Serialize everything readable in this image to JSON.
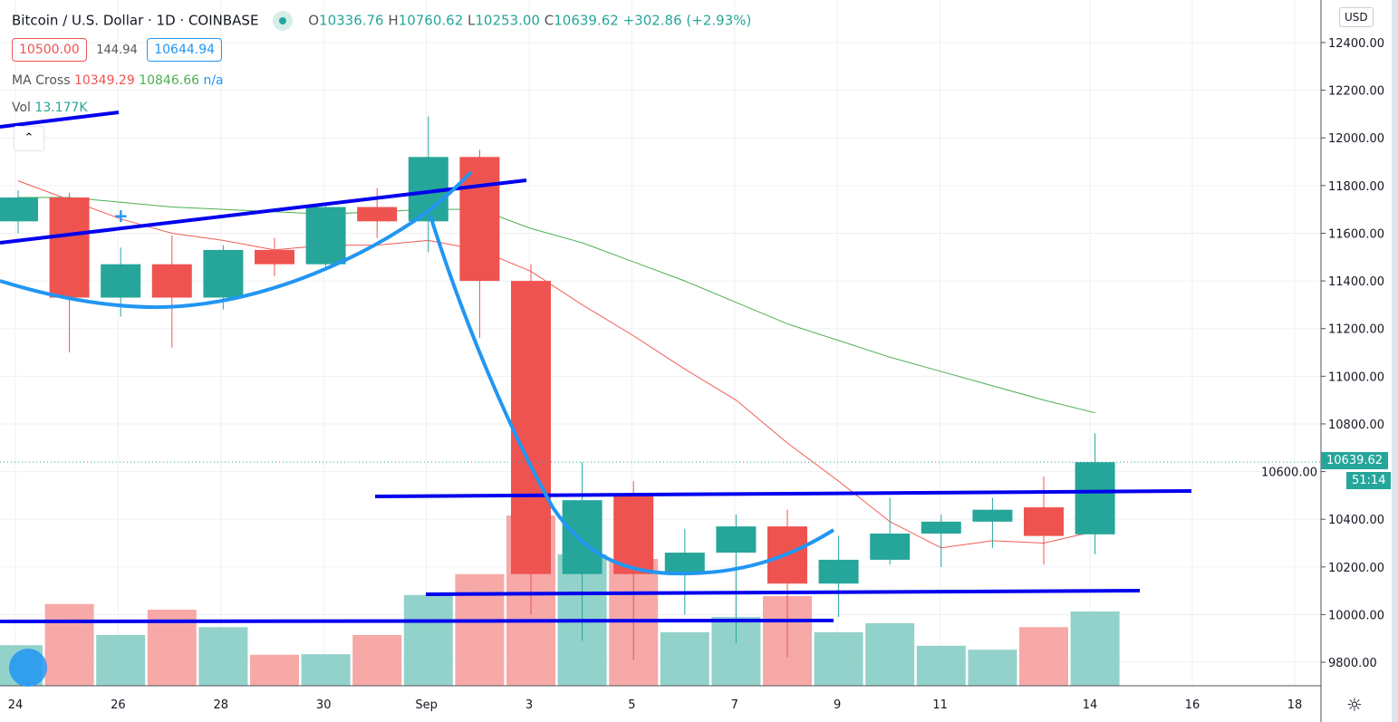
{
  "header": {
    "symbol": "Bitcoin / U.S. Dollar · 1D · COINBASE",
    "o_label": "O",
    "o": "10336.76",
    "h_label": "H",
    "h": "10760.62",
    "l_label": "L",
    "l": "10253.00",
    "c_label": "C",
    "c": "10639.62",
    "change": "+302.86 (+2.93%)"
  },
  "trade": {
    "sell": "10500.00",
    "spread": "144.94",
    "buy": "10644.94"
  },
  "ma_cross": {
    "label": "MA Cross",
    "fast": "10349.29",
    "slow": "10846.66",
    "cross": "n/a"
  },
  "volume": {
    "label": "Vol",
    "value": "13.177K"
  },
  "axis": {
    "currency": "USD",
    "last_price": "10639.62",
    "countdown": "51:14"
  },
  "colors": {
    "up": "#26a69a",
    "down": "#ef5350",
    "ma_fast": "#f25b57",
    "ma_slow": "#4caf50",
    "trendline": "#0000ee",
    "curve": "#2196f3"
  },
  "chart_data": {
    "type": "candlestick",
    "ylim": [
      9700,
      12500
    ],
    "y_ticks": [
      "12400.00",
      "12200.00",
      "12000.00",
      "11800.00",
      "11600.00",
      "11400.00",
      "11200.00",
      "11000.00",
      "10800.00",
      "10600.00",
      "10400.00",
      "10200.00",
      "10000.00",
      "9800.00"
    ],
    "x_ticks": [
      "24",
      "26",
      "28",
      "30",
      "Sep",
      "3",
      "5",
      "7",
      "9",
      "11",
      "14",
      "16",
      "18"
    ],
    "dates": [
      "Aug 24",
      "Aug 25",
      "Aug 26",
      "Aug 27",
      "Aug 28",
      "Aug 29",
      "Aug 30",
      "Aug 31",
      "Sep 1",
      "Sep 2",
      "Sep 3",
      "Sep 4",
      "Sep 5",
      "Sep 6",
      "Sep 7",
      "Sep 8",
      "Sep 9",
      "Sep 10",
      "Sep 11",
      "Sep 12",
      "Sep 13",
      "Sep 14"
    ],
    "open": [
      11650,
      11750,
      11330,
      11470,
      11330,
      11530,
      11470,
      11710,
      11650,
      11920,
      11400,
      10170,
      10500,
      10170,
      10260,
      10370,
      10130,
      10230,
      10340,
      10390,
      10450,
      10336.76
    ],
    "high": [
      11780,
      11770,
      11540,
      11590,
      11550,
      11580,
      11720,
      11790,
      12090,
      11950,
      11470,
      10640,
      10560,
      10360,
      10420,
      10440,
      10330,
      10490,
      10420,
      10490,
      10580,
      10760.62
    ],
    "low": [
      11600,
      11100,
      11250,
      11120,
      11280,
      11420,
      11460,
      11580,
      11520,
      11160,
      10000,
      9890,
      9810,
      10000,
      9880,
      9820,
      9990,
      10210,
      10200,
      10280,
      10210,
      10253.0
    ],
    "close": [
      11750,
      11330,
      11470,
      11330,
      11530,
      11470,
      11710,
      11650,
      11920,
      11400,
      10170,
      10480,
      10170,
      10260,
      10370,
      10130,
      10230,
      10340,
      10390,
      10440,
      10330,
      10639.62
    ],
    "volume_k": [
      7.2,
      14.5,
      9.0,
      13.5,
      10.4,
      5.5,
      5.6,
      9.0,
      16.1,
      19.8,
      30.2,
      23.3,
      22.5,
      9.5,
      12.2,
      15.9,
      9.5,
      11.1,
      7.1,
      6.4,
      10.4,
      13.177
    ],
    "ma_fast": [
      11820,
      11740,
      11660,
      11600,
      11570,
      11530,
      11550,
      11550,
      11570,
      11530,
      11440,
      11300,
      11170,
      11030,
      10900,
      10720,
      10560,
      10390,
      10280,
      10310,
      10300,
      10349.29
    ],
    "ma_slow": [
      11750,
      11750,
      11730,
      11710,
      11700,
      11690,
      11680,
      11690,
      11700,
      11700,
      11620,
      11560,
      11480,
      11400,
      11310,
      11220,
      11150,
      11080,
      11020,
      10960,
      10900,
      10846.66
    ]
  }
}
